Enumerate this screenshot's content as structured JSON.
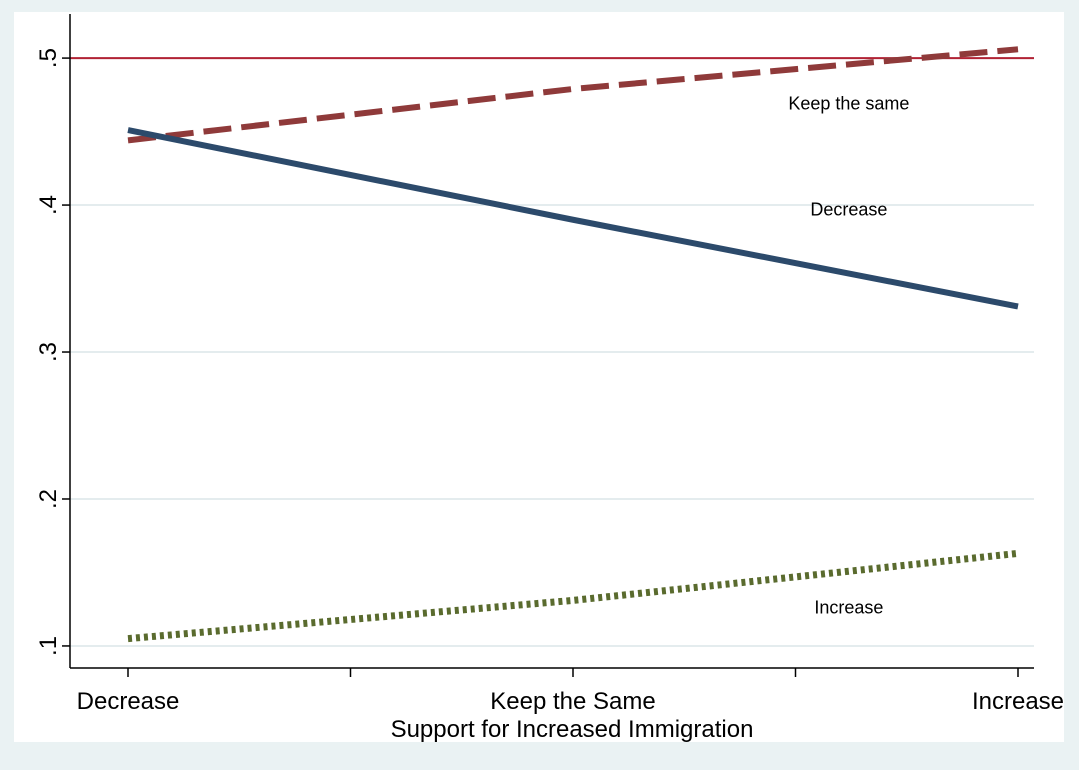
{
  "chart_data": {
    "type": "line",
    "xlabel": "Support for Increased Immigration",
    "ylabel": "",
    "x_categories": [
      "Decrease",
      "Keep the Same",
      "Increase"
    ],
    "x_minor_ticks": 2,
    "y_ticks": [
      ".1",
      ".2",
      ".3",
      ".4",
      ".5"
    ],
    "y_tick_values": [
      0.1,
      0.2,
      0.3,
      0.4,
      0.5
    ],
    "ylim": [
      0.085,
      0.53
    ],
    "grid": true,
    "reference_line": {
      "y": 0.5,
      "color": "#b22234"
    },
    "series": [
      {
        "name": "Keep the same",
        "style": "dashed",
        "color": "#8f3a3a",
        "values": [
          0.444,
          0.479,
          0.506
        ],
        "label_at": [
          1.62,
          0.465
        ]
      },
      {
        "name": "Decrease",
        "style": "solid",
        "color": "#2c4a6b",
        "values": [
          0.451,
          0.39,
          0.331
        ],
        "label_at": [
          1.62,
          0.393
        ]
      },
      {
        "name": "Increase",
        "style": "dotted",
        "color": "#5a6b2e",
        "values": [
          0.105,
          0.131,
          0.163
        ],
        "label_at": [
          1.62,
          0.122
        ]
      }
    ]
  }
}
